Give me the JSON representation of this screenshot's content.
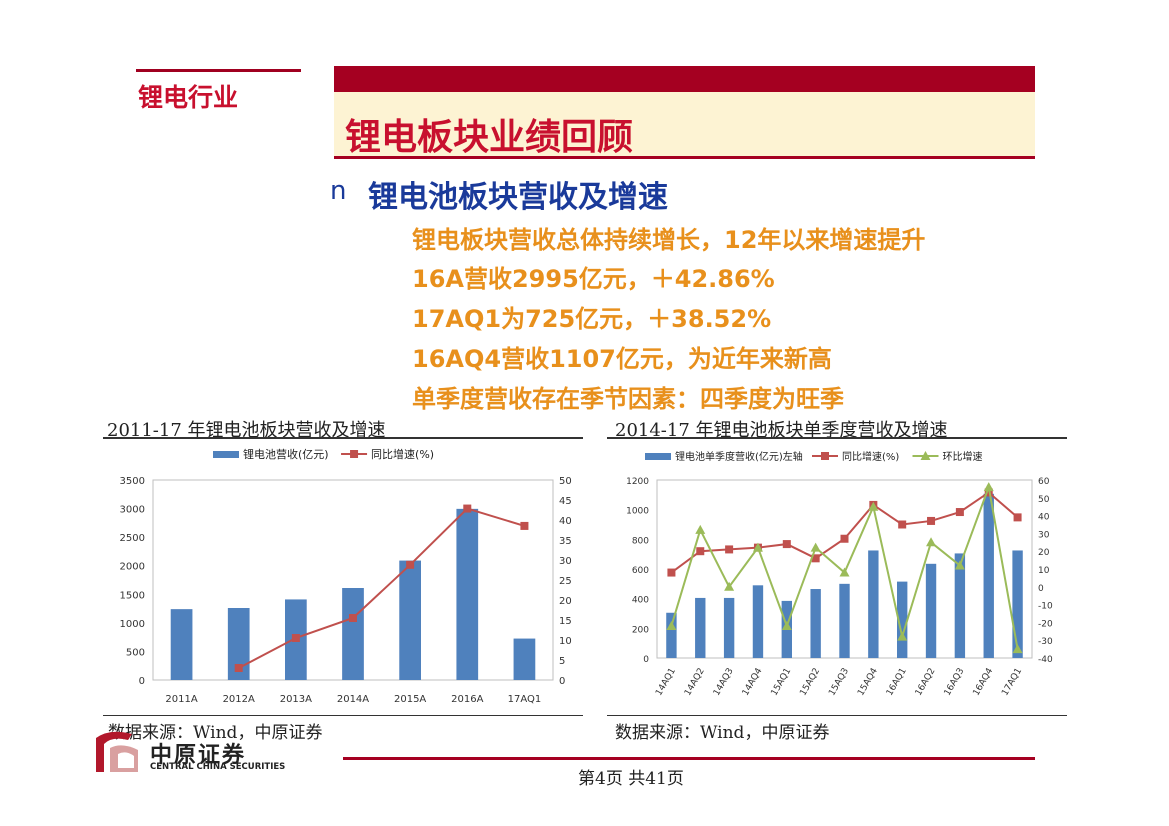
{
  "section": "锂电行业",
  "title": "锂电板块业绩回顾",
  "bullet": {
    "marker": "n",
    "heading": "锂电池板块营收及增速"
  },
  "points": [
    "锂电板块营收总体持续增长，12年以来增速提升",
    "16A营收2995亿元，＋42.86%",
    "17AQ1为725亿元，＋38.52%",
    "16AQ4营收1107亿元，为近年来新高",
    "单季度营收存在季节因素：四季度为旺季"
  ],
  "logo": {
    "cn": "中原证券",
    "en": "CENTRAL CHINA SECURITIES"
  },
  "footer": {
    "page": "第4页   共41页"
  },
  "colors": {
    "accent": "#a50021",
    "bar": "#4f81bd",
    "line_red": "#c0504d",
    "line_green": "#9bbb59",
    "point_text": "#e8901c",
    "heading_blue": "#1a3a9a"
  },
  "chart_data": [
    {
      "type": "bar",
      "title": "2011-17 年锂电池板块营收及增速",
      "source": "数据来源：Wind，中原证券",
      "categories": [
        "2011A",
        "2012A",
        "2013A",
        "2014A",
        "2015A",
        "2016A",
        "17AQ1"
      ],
      "series": [
        {
          "name": "锂电池营收(亿元)",
          "type": "bar",
          "axis": "left",
          "values": [
            1240,
            1260,
            1410,
            1610,
            2090,
            2995,
            725
          ]
        },
        {
          "name": "同比增速(%)",
          "type": "line",
          "axis": "right",
          "values": [
            null,
            3,
            10.5,
            15.5,
            28.8,
            42.86,
            38.52
          ]
        }
      ],
      "y_left": {
        "min": 0,
        "max": 3500,
        "ticks": [
          "0",
          "500",
          "1000",
          "1500",
          "2000",
          "2500",
          "3000",
          "3500"
        ]
      },
      "y_right": {
        "min": 0,
        "max": 50,
        "ticks": [
          "0",
          "5",
          "10",
          "15",
          "20",
          "25",
          "30",
          "35",
          "40",
          "45",
          "50"
        ]
      }
    },
    {
      "type": "bar",
      "title": "2014-17 年锂电池板块单季度营收及增速",
      "source": "数据来源：Wind，中原证券",
      "categories": [
        "14AQ1",
        "14AQ2",
        "14AQ3",
        "14AQ4",
        "15AQ1",
        "15AQ2",
        "15AQ3",
        "15AQ4",
        "16AQ1",
        "16AQ2",
        "16AQ3",
        "16AQ4",
        "17AQ1"
      ],
      "series": [
        {
          "name": "锂电池单季度营收(亿元)左轴",
          "type": "bar",
          "axis": "left",
          "values": [
            305,
            405,
            405,
            490,
            385,
            465,
            500,
            725,
            515,
            635,
            705,
            1107,
            725
          ]
        },
        {
          "name": "同比增速(%)",
          "type": "line",
          "axis": "right",
          "values": [
            8,
            20,
            21,
            22,
            24,
            16,
            27,
            46,
            35,
            37,
            42,
            53,
            39
          ]
        },
        {
          "name": "环比增速",
          "type": "line",
          "axis": "right",
          "values": [
            -22,
            32,
            0,
            22,
            -22,
            22,
            8,
            45,
            -28,
            25,
            12,
            56,
            -35
          ]
        }
      ],
      "y_left": {
        "min": 0,
        "max": 1200,
        "ticks": [
          "0",
          "200",
          "400",
          "600",
          "800",
          "1000",
          "1200"
        ]
      },
      "y_right": {
        "min": -40,
        "max": 60,
        "ticks": [
          "-40",
          "-30",
          "-20",
          "-10",
          "0",
          "10",
          "20",
          "30",
          "40",
          "50",
          "60"
        ]
      }
    }
  ]
}
